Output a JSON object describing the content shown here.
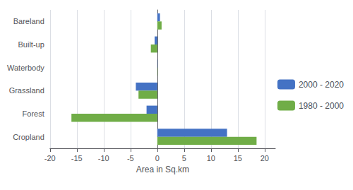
{
  "chart_data": {
    "type": "bar",
    "orientation": "horizontal",
    "categories": [
      "Cropland",
      "Forest",
      "Grassland",
      "Waterbody",
      "Built-up",
      "Bareland"
    ],
    "series": [
      {
        "name": "2000 - 2020",
        "color": "#4472C4",
        "values": [
          13.0,
          -2.0,
          -4.0,
          0.05,
          -0.5,
          0.5
        ]
      },
      {
        "name": "1980 - 2000",
        "color": "#70AD47",
        "values": [
          18.5,
          -16.0,
          -3.5,
          0.05,
          -1.2,
          0.8
        ]
      }
    ],
    "xlabel": "Area in Sq.km",
    "xlim": [
      -20,
      22
    ],
    "xticks": [
      -20,
      -15,
      -10,
      -5,
      0,
      5,
      10,
      15,
      20
    ],
    "grid": true,
    "legend": "right"
  }
}
